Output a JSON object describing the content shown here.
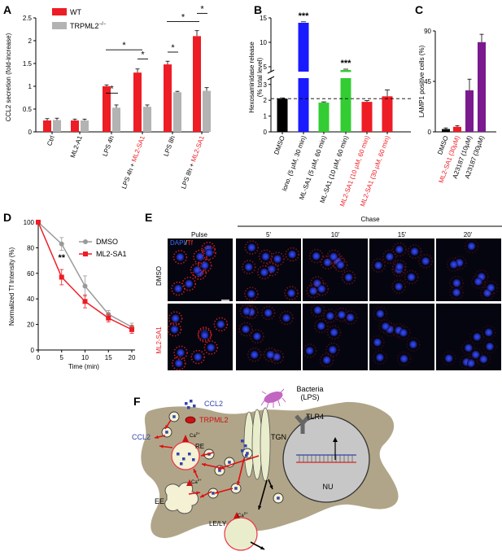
{
  "panels": {
    "a": "A",
    "b": "B",
    "c": "C",
    "d": "D",
    "e": "E",
    "f": "F"
  },
  "colors": {
    "wt": "#ee1c24",
    "ko": "#b3b3b3",
    "blue": "#1a1aff",
    "green": "#33cc33",
    "purple": "#7b1a8f",
    "dmso_line": "#999999",
    "sa1_line": "#ee1c24",
    "cell": "#b1a589",
    "nucleus": "#c7c7c7",
    "vesicle": "#f4f1d4"
  },
  "chartA": {
    "type": "bar",
    "legend": {
      "wt": "WT",
      "ko": "TRPML2",
      "ko_sup": "−/−"
    },
    "ylabel": "CCL2 secretion (fold-increase)",
    "yticks": [
      "0",
      "0.5",
      "1",
      "1.5",
      "2",
      "2.5"
    ],
    "ylim": [
      0,
      2.5
    ],
    "categories": [
      "Ctrl",
      "ML2-A1",
      "LPS 4h",
      "LPS 4h + ",
      "LPS 8h",
      "LPS 8h + "
    ],
    "category_suffix": "ML2-SA1",
    "series": [
      {
        "name": "WT",
        "values": [
          0.25,
          0.25,
          1.0,
          1.3,
          1.48,
          2.1
        ],
        "errors": [
          0.04,
          0.03,
          0.03,
          0.08,
          0.07,
          0.12
        ]
      },
      {
        "name": "TRPML2−/−",
        "values": [
          0.26,
          0.25,
          0.53,
          0.55,
          0.87,
          0.9
        ],
        "errors": [
          0.04,
          0.03,
          0.06,
          0.04,
          0.02,
          0.07
        ]
      }
    ],
    "sig": "*"
  },
  "chartB": {
    "type": "bar",
    "ylabel1": "Hexosaminidase release",
    "ylabel2": "(% total level)",
    "yticks_lower": [
      "0",
      "1",
      "2",
      "3"
    ],
    "yticks_upper": [
      "5",
      "10",
      "15"
    ],
    "categories": [
      "DMSO",
      "Iono. (5 µM, 30 min)",
      "ML-SA1 (5 µM, 60 min)",
      "ML-SA1 (10 µM, 60 min)",
      "ML2-SA1 (10 µM, 60 min)",
      "ML2-SA1 (30 µM, 60 min)"
    ],
    "values": [
      2.1,
      14.0,
      1.85,
      3.8,
      1.9,
      2.25
    ],
    "errors": [
      0.05,
      0.2,
      0.05,
      0.15,
      0.08,
      0.4
    ],
    "sig": "***",
    "baseline": 2.1
  },
  "chartC": {
    "type": "bar",
    "ylabel": "LAMP1 positive cells (%)",
    "yticks": [
      "0",
      "45",
      "90"
    ],
    "ylim": [
      0,
      90
    ],
    "categories": [
      "DMSO",
      "ML2-SA1 (30µM)",
      "A23187 (10µM)",
      "A23187 (30µM)"
    ],
    "values": [
      2.5,
      4.5,
      37,
      80
    ],
    "errors": [
      1,
      1,
      10,
      7
    ]
  },
  "chartD": {
    "type": "line",
    "ylabel": "Normalized Tf Intensity (%)",
    "xlabel": "Time (min)",
    "xticks": [
      "0",
      "5",
      "10",
      "15",
      "20"
    ],
    "yticks": [
      "0",
      "20",
      "40",
      "60",
      "80",
      "100"
    ],
    "x": [
      0,
      5,
      10,
      15,
      20
    ],
    "series": [
      {
        "name": "DMSO",
        "values": [
          100,
          83,
          50,
          28,
          18
        ],
        "errors": [
          0,
          5,
          8,
          3,
          3
        ]
      },
      {
        "name": "ML2-SA1",
        "values": [
          100,
          57,
          38,
          25,
          16
        ],
        "errors": [
          0,
          6,
          5,
          3,
          3
        ]
      }
    ],
    "sig": "**"
  },
  "panelE": {
    "chase": "Chase",
    "cols": [
      "Pulse",
      "5'",
      "10'",
      "15'",
      "20'"
    ],
    "rows": [
      "DMSO",
      "ML2-SA1"
    ],
    "stain_dapi": "DAPI",
    "stain_sep": "/",
    "stain_tf": "Tf"
  },
  "panelF": {
    "ccl2": "CCL2",
    "trpml2": "TRPML2",
    "bacteria": "Bacteria",
    "lps": "(LPS)",
    "tlr4": "TLR4",
    "ccl2_out": "CCL2",
    "re": "RE",
    "tgn": "TGN",
    "ee": "EE",
    "nu": "NU",
    "le": "LE/LY",
    "ca": "Ca",
    "ca_sup": "2+"
  }
}
